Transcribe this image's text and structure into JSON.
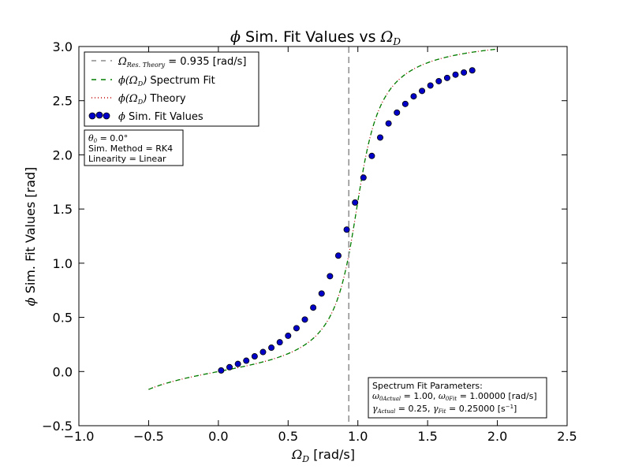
{
  "chart_data": {
    "type": "scatter",
    "title": {
      "prefix": "ϕ",
      "middle": " Sim. Fit Values vs ",
      "omega": "Ω",
      "sub": "D"
    },
    "xlabel": {
      "omega": "Ω",
      "sub": "D",
      "suffix": " [rad/s]"
    },
    "ylabel": {
      "prefix": "ϕ",
      "suffix": " Sim. Fit Values [rad]"
    },
    "xlim": [
      -1.0,
      2.5
    ],
    "ylim": [
      -0.5,
      3.0
    ],
    "xticks": [
      -1.0,
      -0.5,
      0.0,
      0.5,
      1.0,
      1.5,
      2.0,
      2.5
    ],
    "yticks": [
      -0.5,
      0.0,
      0.5,
      1.0,
      1.5,
      2.0,
      2.5,
      3.0
    ],
    "xtick_labels": [
      "−1.0",
      "−0.5",
      "0.0",
      "0.5",
      "1.0",
      "1.5",
      "2.0",
      "2.5"
    ],
    "ytick_labels": [
      "−0.5",
      "0.0",
      "0.5",
      "1.0",
      "1.5",
      "2.0",
      "2.5",
      "3.0"
    ],
    "legend": {
      "placement": "top-left",
      "entries": [
        {
          "math": "Ω",
          "sub": "Res. Theory",
          "text": " = 0.935 [rad/s]",
          "style": "dashed-gray"
        },
        {
          "math": "ϕ(Ω",
          "sub": "D",
          "tail": ")",
          "text": " Spectrum Fit",
          "style": "dashed-green"
        },
        {
          "math": "ϕ(Ω",
          "sub": "D",
          "tail": ")",
          "text": " Theory",
          "style": "dotted-red"
        },
        {
          "math": "ϕ",
          "sub": "",
          "tail": "",
          "text": " Sim. Fit Values",
          "style": "markers-blue"
        }
      ]
    },
    "info_box": {
      "placement": "upper-left",
      "line1_math": "θ",
      "line1_sub": "0",
      "line1_text": " =  0.0°",
      "line2": "Sim. Method = RK4",
      "line3": "Linearity = Linear"
    },
    "params_box": {
      "placement": "lower-right",
      "title": "Spectrum Fit Parameters:",
      "l2a_math": "ω",
      "l2a_sub": "0Actual",
      "l2a_text": " = 1.00, ",
      "l2b_math": "ω",
      "l2b_sub": "0Fit",
      "l2b_text": " = 1.00000 [rad/s]",
      "l3a_math": "γ",
      "l3a_sub": "Actual",
      "l3a_text": " = 0.25, ",
      "l3b_math": "γ",
      "l3b_sub": "Fit",
      "l3b_text": " = 0.25000 [s",
      "l3b_sup": "−1",
      "l3b_close": "]"
    },
    "vline_x": 0.935,
    "curve": {
      "omega0": 1.0,
      "gamma": 0.25,
      "x_range": [
        -0.5,
        2.0
      ]
    },
    "series": [
      {
        "name": "ϕ Sim. Fit Values",
        "x": [
          0.02,
          0.08,
          0.14,
          0.2,
          0.26,
          0.32,
          0.38,
          0.44,
          0.5,
          0.56,
          0.62,
          0.68,
          0.74,
          0.8,
          0.86,
          0.92,
          0.98,
          1.04,
          1.1,
          1.16,
          1.22,
          1.28,
          1.34,
          1.4,
          1.46,
          1.52,
          1.58,
          1.64,
          1.7,
          1.76,
          1.82
        ],
        "y": [
          0.01,
          0.04,
          0.07,
          0.1,
          0.14,
          0.18,
          0.22,
          0.27,
          0.33,
          0.4,
          0.48,
          0.59,
          0.72,
          0.88,
          1.07,
          1.31,
          1.56,
          1.79,
          1.99,
          2.16,
          2.29,
          2.39,
          2.47,
          2.54,
          2.59,
          2.64,
          2.68,
          2.71,
          2.74,
          2.76,
          2.78
        ]
      }
    ],
    "colors": {
      "vline": "#8c8c8c",
      "fit": "#007f00",
      "theory": "#bf0000",
      "marker_fill": "#0000c8",
      "marker_edge": "#000000"
    }
  }
}
